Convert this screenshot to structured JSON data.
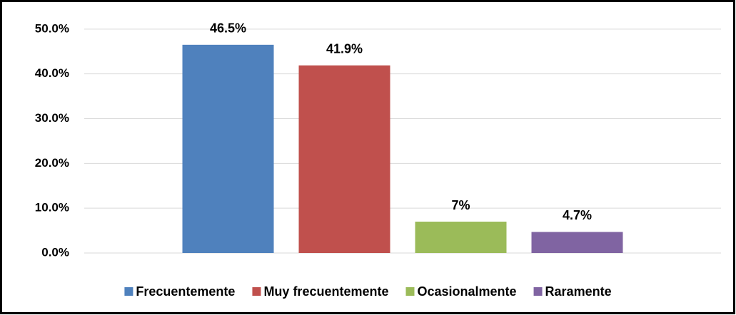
{
  "chart_data": {
    "type": "bar",
    "categories": [
      null
    ],
    "series": [
      {
        "name": "Frecuentemente",
        "color": "#4f81bd",
        "values": [
          46.5
        ],
        "value_labels": [
          "46.5%"
        ]
      },
      {
        "name": "Muy frecuentemente",
        "color": "#c0504d",
        "values": [
          41.9
        ],
        "value_labels": [
          "41.9%"
        ]
      },
      {
        "name": "Ocasionalmente",
        "color": "#9bbb59",
        "values": [
          7
        ],
        "value_labels": [
          "7%"
        ]
      },
      {
        "name": "Raramente",
        "color": "#8064a2",
        "values": [
          4.7
        ],
        "value_labels": [
          "4.7%"
        ]
      }
    ],
    "ylim": [
      0,
      53
    ],
    "yticks": [
      {
        "value": 0,
        "label": "0.0%"
      },
      {
        "value": 10,
        "label": "10.0%"
      },
      {
        "value": 20,
        "label": "20.0%"
      },
      {
        "value": 30,
        "label": "30.0%"
      },
      {
        "value": 40,
        "label": "40.0%"
      },
      {
        "value": 50,
        "label": "50.0%"
      }
    ],
    "grid": true,
    "legend": "bottom"
  }
}
